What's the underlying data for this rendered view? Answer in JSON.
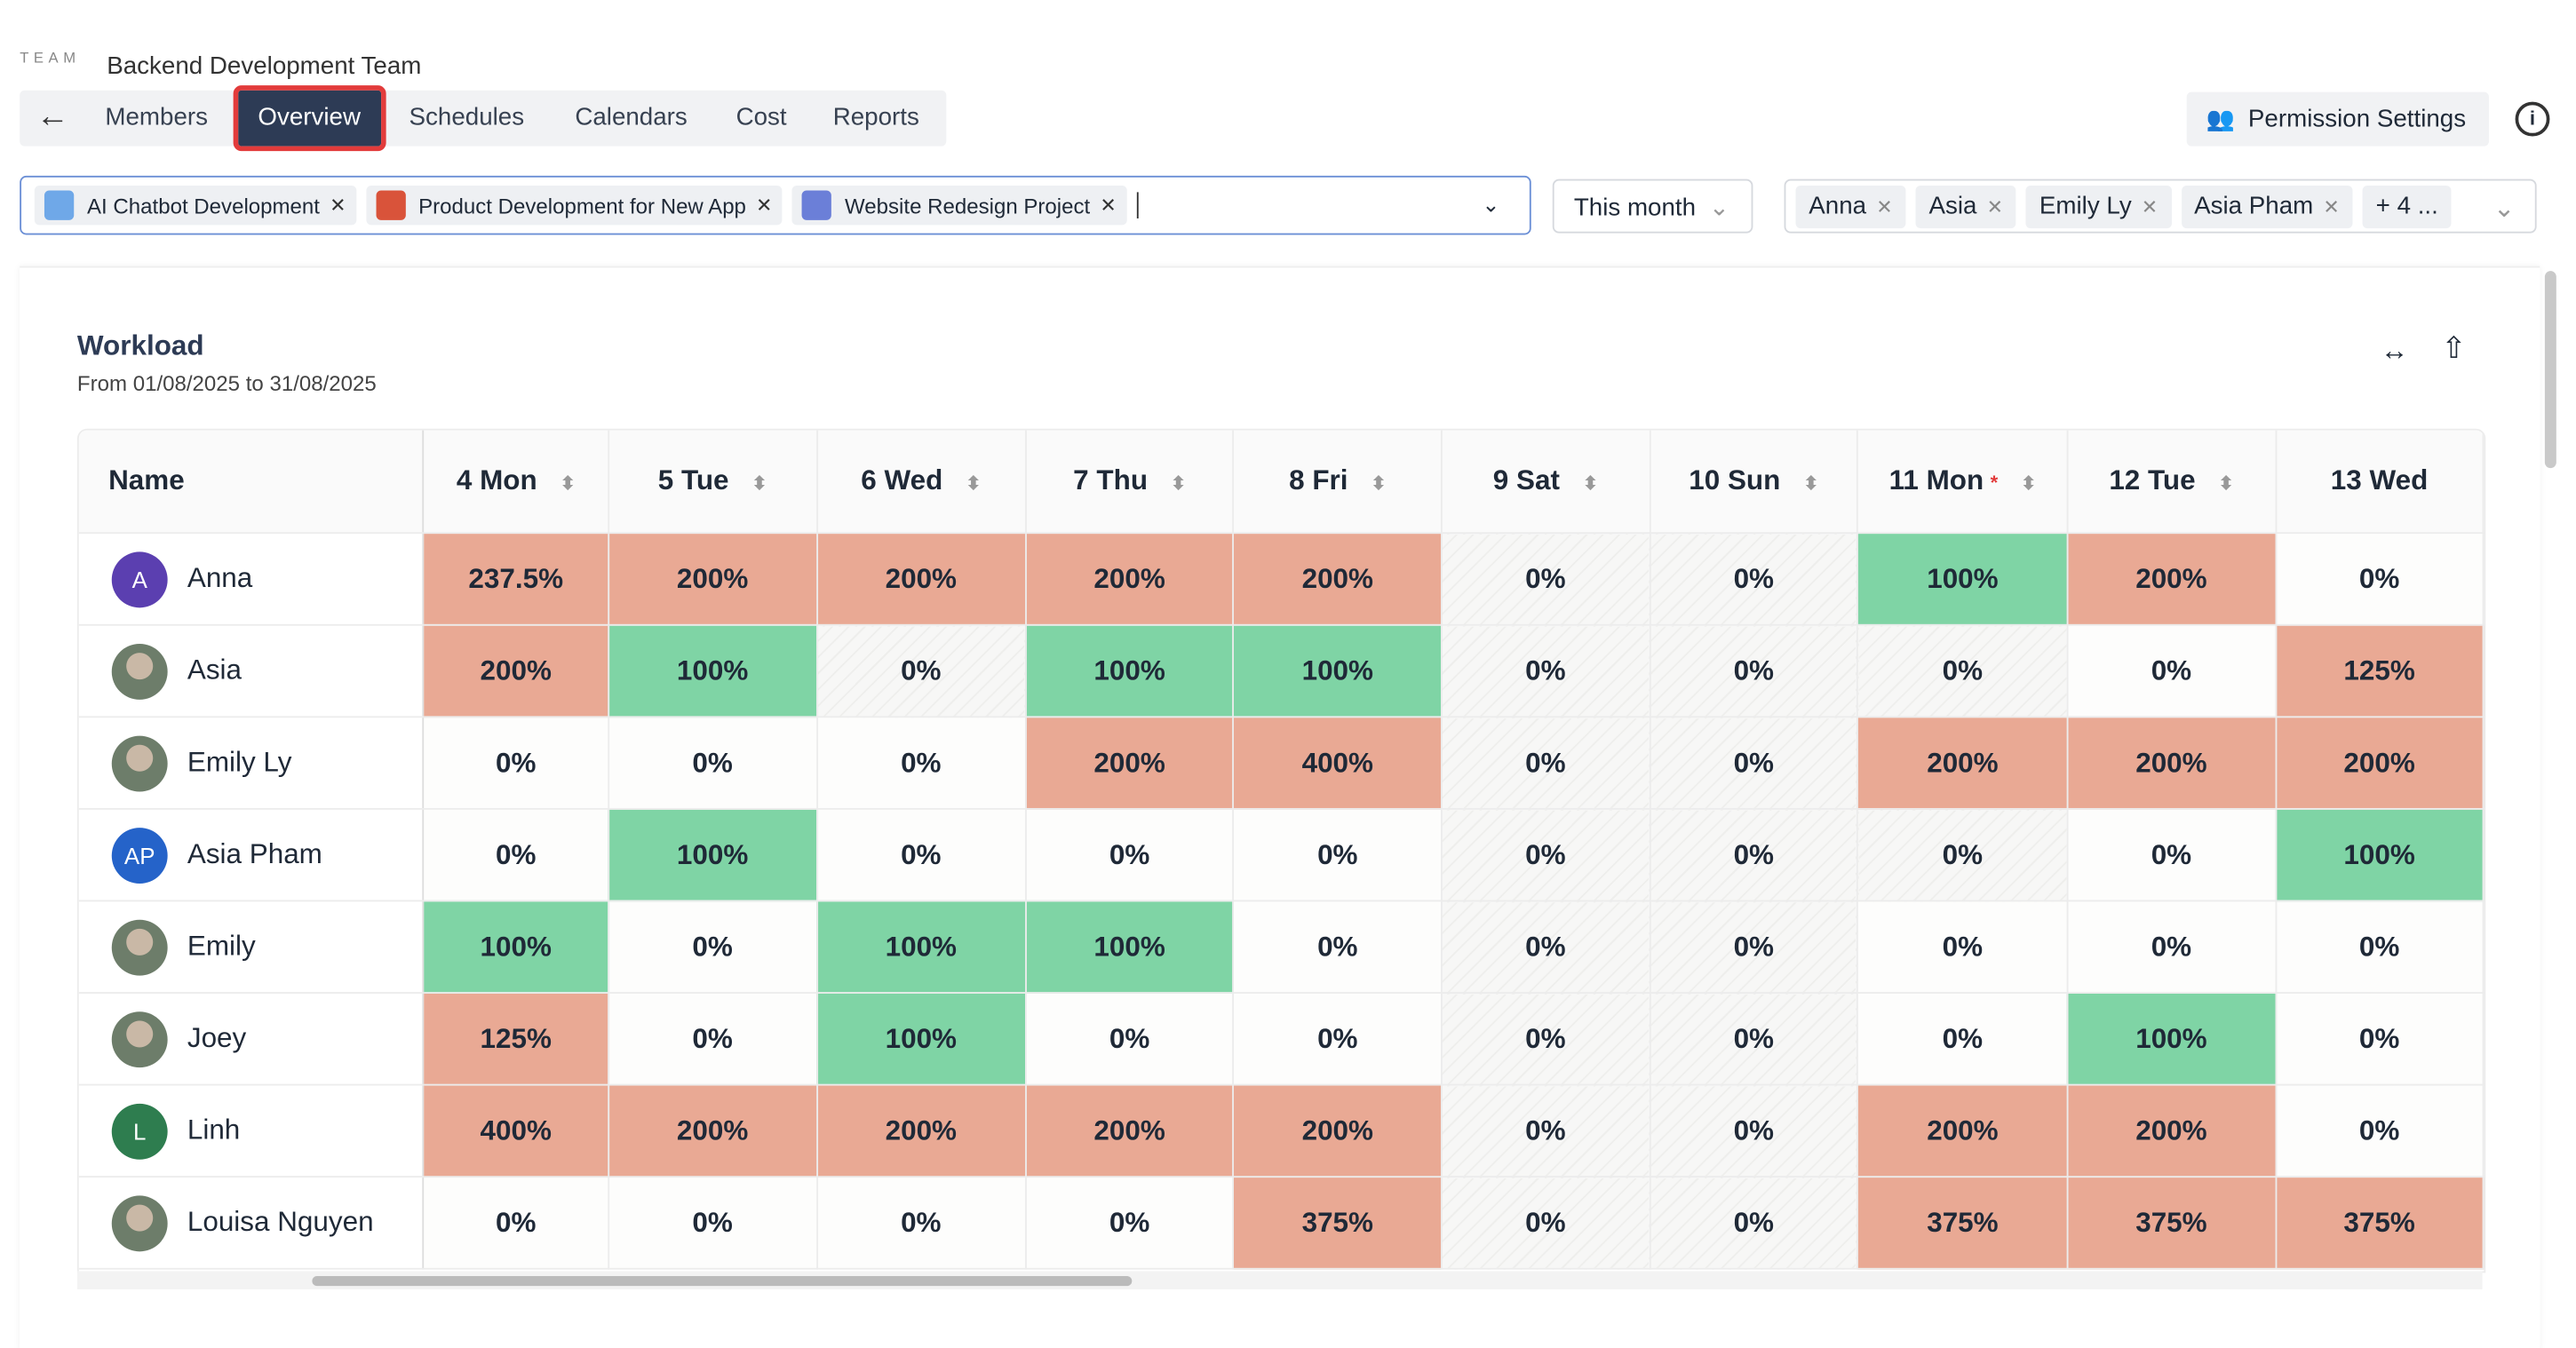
{
  "header": {
    "team_label": "TEAM",
    "title": "Backend Development Team"
  },
  "tabs": [
    "Members",
    "Overview",
    "Schedules",
    "Calendars",
    "Cost",
    "Reports"
  ],
  "active_tab": "Overview",
  "permission_button": "Permission Settings",
  "project_filter": [
    "AI Chatbot Development",
    "Product Development for New App",
    "Website Redesign Project"
  ],
  "date_filter": "This month",
  "member_filter": [
    "Anna",
    "Asia",
    "Emily Ly",
    "Asia Pham",
    "+ 4 ..."
  ],
  "workload": {
    "title": "Workload",
    "subtitle": "From 01/08/2025 to 31/08/2025"
  },
  "table": {
    "columns": [
      "Name",
      "4 Mon",
      "5 Tue",
      "6 Wed",
      "7 Thu",
      "8 Fri",
      "9 Sat",
      "10 Sun",
      "11 Mon",
      "12 Tue",
      "13 Wed"
    ],
    "rows": [
      {
        "avatar": "A",
        "name": "Anna",
        "cells": [
          "237.5%",
          "200%",
          "200%",
          "200%",
          "200%",
          "0%",
          "0%",
          "100%",
          "200%",
          "0%"
        ]
      },
      {
        "name": "Asia",
        "cells": [
          "200%",
          "100%",
          "0%",
          "100%",
          "100%",
          "0%",
          "0%",
          "0%",
          "0%",
          "125%"
        ]
      },
      {
        "name": "Emily Ly",
        "cells": [
          "0%",
          "0%",
          "0%",
          "200%",
          "400%",
          "0%",
          "0%",
          "200%",
          "200%",
          "200%"
        ]
      },
      {
        "avatar": "AP",
        "name": "Asia Pham",
        "cells": [
          "0%",
          "100%",
          "0%",
          "0%",
          "0%",
          "0%",
          "0%",
          "0%",
          "0%",
          "100%"
        ]
      },
      {
        "name": "Emily",
        "cells": [
          "100%",
          "0%",
          "100%",
          "100%",
          "0%",
          "0%",
          "0%",
          "0%",
          "0%",
          "0%"
        ]
      },
      {
        "name": "Joey",
        "cells": [
          "125%",
          "0%",
          "100%",
          "0%",
          "0%",
          "0%",
          "0%",
          "0%",
          "100%",
          "0%"
        ]
      },
      {
        "avatar": "L",
        "name": "Linh",
        "cells": [
          "400%",
          "200%",
          "200%",
          "200%",
          "200%",
          "0%",
          "0%",
          "200%",
          "200%",
          "0%"
        ]
      },
      {
        "name": "Louisa Nguyen",
        "cells": [
          "0%",
          "0%",
          "0%",
          "0%",
          "375%",
          "0%",
          "0%",
          "375%",
          "375%",
          "375%"
        ]
      }
    ]
  }
}
